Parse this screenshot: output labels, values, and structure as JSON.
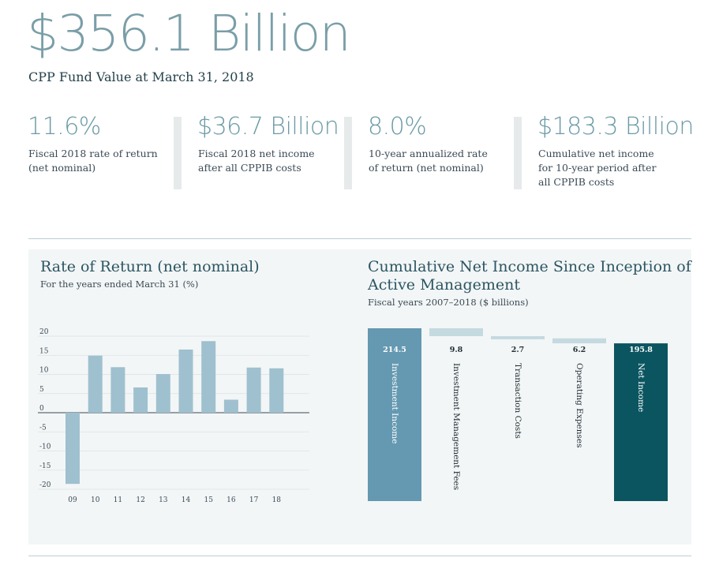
{
  "hero": {
    "value": "$356.1 Billion",
    "label": "CPP Fund Value at March 31, 2018"
  },
  "stats": [
    {
      "value": "11.6%",
      "line1": "Fiscal 2018 rate of return",
      "line2": "(net nominal)",
      "line3": ""
    },
    {
      "value": "$36.7 Billion",
      "line1": "Fiscal 2018 net income",
      "line2": "after all CPPIB costs",
      "line3": ""
    },
    {
      "value": "8.0%",
      "line1": "10-year annualized rate",
      "line2": "of return (net nominal)",
      "line3": ""
    },
    {
      "value": "$183.3 Billion",
      "line1": "Cumulative net income",
      "line2": "for 10-year period after",
      "line3": "all CPPIB costs"
    }
  ],
  "colors": {
    "bar_light": "#9fc0cf",
    "bar_mid": "#6499b1",
    "bar_dark": "#0b5560",
    "bar_pale": "#c5d9e0",
    "accent": "#7a9ea8"
  },
  "chart_data": [
    {
      "type": "bar",
      "title": "Rate of Return (net nominal)",
      "subtitle": "For the years ended March 31 (%)",
      "categories": [
        "09",
        "10",
        "11",
        "12",
        "13",
        "14",
        "15",
        "16",
        "17",
        "18"
      ],
      "values": [
        -18.6,
        14.9,
        11.9,
        6.6,
        10.1,
        16.5,
        18.7,
        3.4,
        11.8,
        11.6
      ],
      "yticks": [
        20,
        15,
        10,
        5,
        0,
        -5,
        -10,
        -15,
        -20
      ],
      "ylim": [
        -20,
        20
      ],
      "xlabel": "",
      "ylabel": ""
    },
    {
      "type": "waterfall",
      "title_line1": "Cumulative Net Income Since Inception of",
      "title_line2": "Active Management",
      "subtitle": "Fiscal years 2007–2018 ($ billions)",
      "categories": [
        "Investment Income",
        "Investment Management Fees",
        "Transaction Costs",
        "Operating Expenses",
        "Net Income"
      ],
      "values": [
        214.5,
        -9.8,
        -2.7,
        -6.2,
        195.8
      ],
      "labels": [
        "214.5",
        "9.8",
        "2.7",
        "6.2",
        "195.8"
      ]
    }
  ]
}
